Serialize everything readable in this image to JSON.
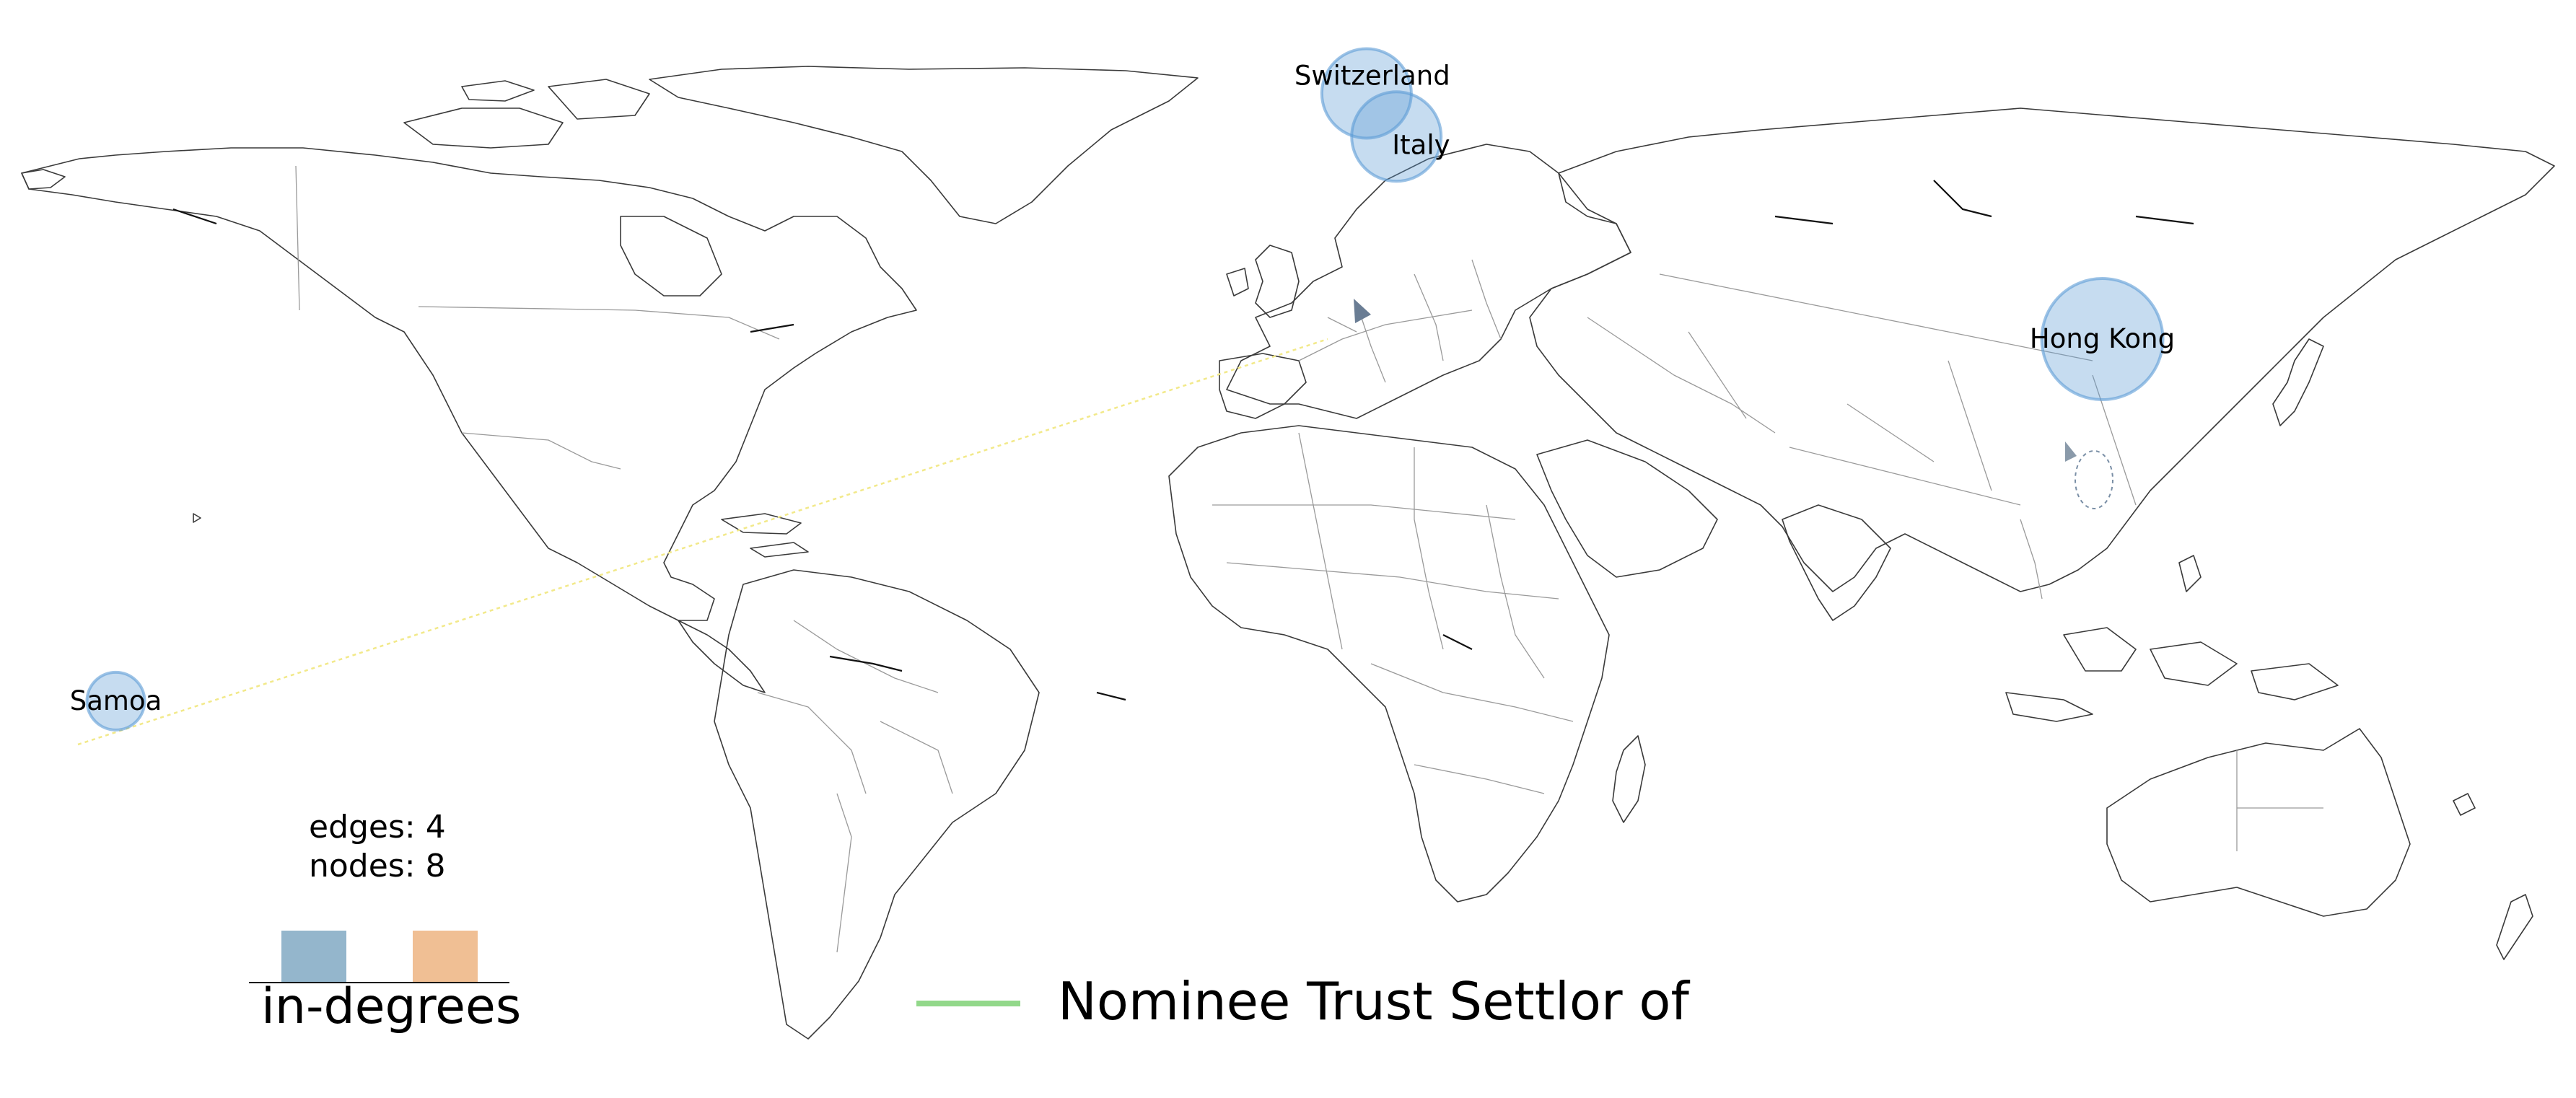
{
  "map": {
    "projection": "equirectangular world outline",
    "colors": {
      "coast": "#3a3a3a",
      "border": "#9a9a9a",
      "in_degree_node": "#5b9bd5",
      "edge_trust_settlor": "#f2e98a",
      "legend_blue": "#94b6cc",
      "legend_orange": "#f0bf94",
      "legend_line": "#92d88a"
    },
    "nodes": [
      {
        "label": "Switzerland",
        "lon": 8.2,
        "lat": 46.8,
        "in_degree": 2
      },
      {
        "label": "Italy",
        "lon": 12.5,
        "lat": 42.5,
        "in_degree": 2
      },
      {
        "label": "Hong Kong",
        "lon": 114.2,
        "lat": 22.3,
        "in_degree": 3
      },
      {
        "label": "Samoa",
        "lon": -172.0,
        "lat": -13.8,
        "in_degree": 1
      }
    ],
    "edges": [
      {
        "from": "Samoa",
        "to": "Switzerland",
        "type": "Nominee Trust Settlor of"
      }
    ]
  },
  "stats": {
    "edges_text": "edges: 4",
    "nodes_text": "nodes: 8"
  },
  "legend": {
    "degree_title": "in-degrees",
    "edge_type_label": "Nominee Trust Settlor of"
  }
}
